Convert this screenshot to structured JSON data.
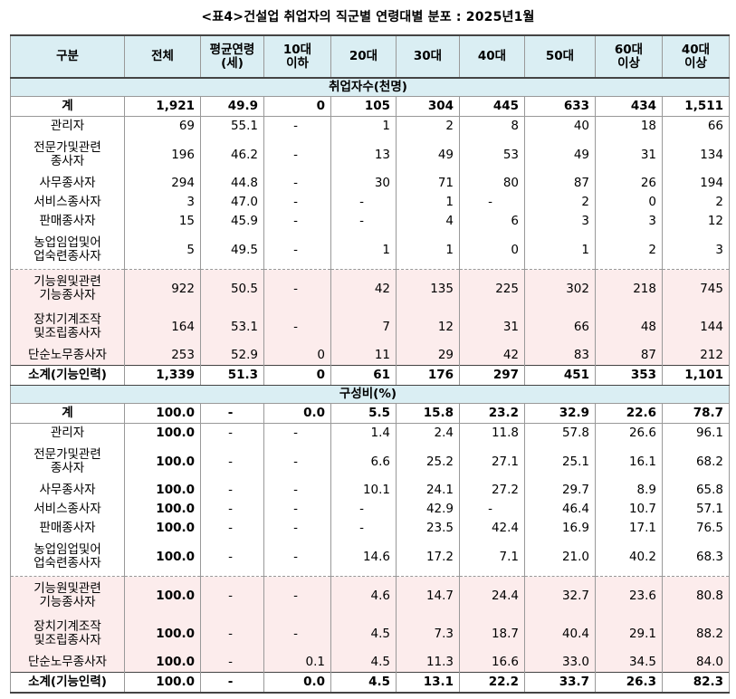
{
  "title": "<표4>건설업 취업자의 직군별 연령대별 분포 : 2025년1월",
  "headers": [
    "구분",
    "전체",
    "평균연령\n(세)",
    "10대\n이하",
    "20대",
    "30대",
    "40대",
    "50대",
    "60대\n이상",
    "40대\n이상"
  ],
  "sections": [
    {
      "title": "취업자수(천명)",
      "rows": [
        {
          "label": "계",
          "values": [
            "1,921",
            "49.9",
            "0",
            "105",
            "304",
            "445",
            "633",
            "434",
            "1,511"
          ],
          "type": "total"
        },
        {
          "label": "관리자",
          "values": [
            "69",
            "55.1",
            "-",
            "1",
            "2",
            "8",
            "40",
            "18",
            "66"
          ],
          "type": "normal"
        },
        {
          "label": "전문가및관련\n종사자",
          "values": [
            "196",
            "46.2",
            "-",
            "13",
            "49",
            "53",
            "49",
            "31",
            "134"
          ],
          "type": "normal"
        },
        {
          "label": "사무종사자",
          "values": [
            "294",
            "44.8",
            "-",
            "30",
            "71",
            "80",
            "87",
            "26",
            "194"
          ],
          "type": "normal"
        },
        {
          "label": "서비스종사자",
          "values": [
            "3",
            "47.0",
            "-",
            "-",
            "1",
            "-",
            "2",
            "0",
            "2"
          ],
          "type": "normal"
        },
        {
          "label": "판매종사자",
          "values": [
            "15",
            "45.9",
            "-",
            "-",
            "4",
            "6",
            "3",
            "3",
            "12"
          ],
          "type": "normal"
        },
        {
          "label": "농업임업및어\n업숙련종사자",
          "values": [
            "5",
            "49.5",
            "-",
            "1",
            "1",
            "0",
            "1",
            "2",
            "3"
          ],
          "type": "normal"
        },
        {
          "label": "기능원및관련\n기능종사자",
          "values": [
            "922",
            "50.5",
            "-",
            "42",
            "135",
            "225",
            "302",
            "218",
            "745"
          ],
          "type": "pink"
        },
        {
          "label": "장치기계조작\n및조립종사자",
          "values": [
            "164",
            "53.1",
            "-",
            "7",
            "12",
            "31",
            "66",
            "48",
            "144"
          ],
          "type": "pink"
        },
        {
          "label": "단순노무종사자",
          "values": [
            "253",
            "52.9",
            "0",
            "11",
            "29",
            "42",
            "83",
            "87",
            "212"
          ],
          "type": "pink"
        },
        {
          "label": "소계(기능인력)",
          "values": [
            "1,339",
            "51.3",
            "0",
            "61",
            "176",
            "297",
            "451",
            "353",
            "1,101"
          ],
          "type": "subtotal"
        }
      ]
    },
    {
      "title": "구성비(%)",
      "rows": [
        {
          "label": "계",
          "values": [
            "100.0",
            "-",
            "0.0",
            "5.5",
            "15.8",
            "23.2",
            "32.9",
            "22.6",
            "78.7"
          ],
          "type": "total"
        },
        {
          "label": "관리자",
          "values": [
            "100.0",
            "-",
            "-",
            "1.4",
            "2.4",
            "11.8",
            "57.8",
            "26.6",
            "96.1"
          ],
          "type": "normal"
        },
        {
          "label": "전문가및관련\n종사자",
          "values": [
            "100.0",
            "-",
            "-",
            "6.6",
            "25.2",
            "27.1",
            "25.1",
            "16.1",
            "68.2"
          ],
          "type": "normal"
        },
        {
          "label": "사무종사자",
          "values": [
            "100.0",
            "-",
            "-",
            "10.1",
            "24.1",
            "27.2",
            "29.7",
            "8.9",
            "65.8"
          ],
          "type": "normal"
        },
        {
          "label": "서비스종사자",
          "values": [
            "100.0",
            "-",
            "-",
            "-",
            "42.9",
            "-",
            "46.4",
            "10.7",
            "57.1"
          ],
          "type": "normal"
        },
        {
          "label": "판매종사자",
          "values": [
            "100.0",
            "-",
            "-",
            "-",
            "23.5",
            "42.4",
            "16.9",
            "17.1",
            "76.5"
          ],
          "type": "normal"
        },
        {
          "label": "농업임업및어\n업숙련종사자",
          "values": [
            "100.0",
            "-",
            "-",
            "14.6",
            "17.2",
            "7.1",
            "21.0",
            "40.2",
            "68.3"
          ],
          "type": "normal"
        },
        {
          "label": "기능원및관련\n기능종사자",
          "values": [
            "100.0",
            "-",
            "-",
            "4.6",
            "14.7",
            "24.4",
            "32.7",
            "23.6",
            "80.8"
          ],
          "type": "pink"
        },
        {
          "label": "장치기계조작\n및조립종사자",
          "values": [
            "100.0",
            "-",
            "-",
            "4.5",
            "7.3",
            "18.7",
            "40.4",
            "29.1",
            "88.2"
          ],
          "type": "pink"
        },
        {
          "label": "단순노무종사자",
          "values": [
            "100.0",
            "-",
            "0.1",
            "4.5",
            "11.3",
            "16.6",
            "33.0",
            "34.5",
            "84.0"
          ],
          "type": "pink"
        },
        {
          "label": "소계(기능인력)",
          "values": [
            "100.0",
            "-",
            "0.0",
            "4.5",
            "13.1",
            "22.2",
            "33.7",
            "26.3",
            "82.3"
          ],
          "type": "subtotal"
        }
      ]
    }
  ]
}
